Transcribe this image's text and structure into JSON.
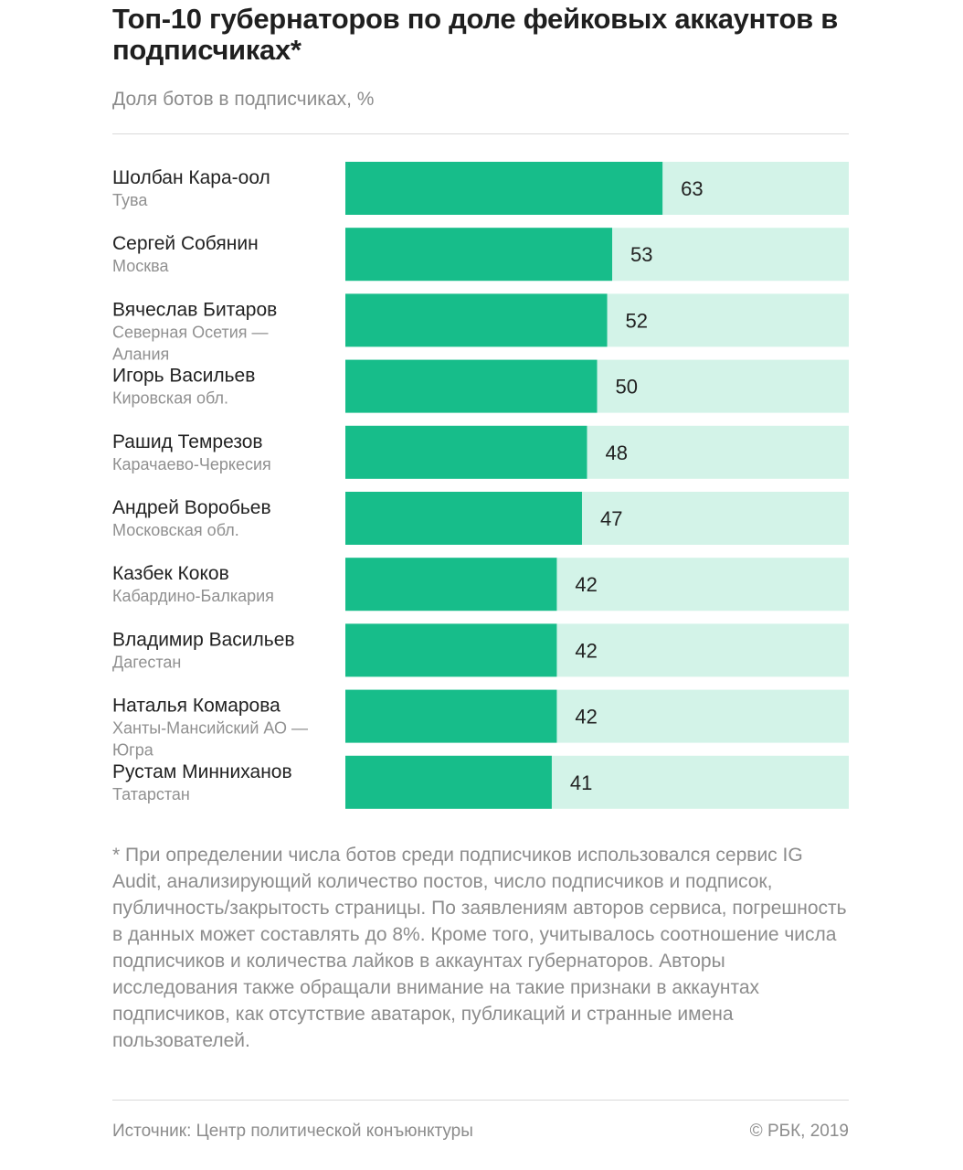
{
  "title": "Топ-10 губернаторов по доле фейковых аккаунтов в подписчиках*",
  "subtitle": "Доля ботов в подписчиках, %",
  "colors": {
    "bar": "#17bd8a",
    "track": "#d3f3e8"
  },
  "chart_data": {
    "type": "bar",
    "orientation": "horizontal",
    "xlim": [
      0,
      100
    ],
    "categories": [
      {
        "name": "Шолбан Кара-оол",
        "region": [
          "Тува"
        ]
      },
      {
        "name": "Сергей Собянин",
        "region": [
          "Москва"
        ]
      },
      {
        "name": "Вячеслав Битаров",
        "region": [
          "Северная Осетия —",
          "Алания"
        ]
      },
      {
        "name": "Игорь Васильев",
        "region": [
          "Кировская обл."
        ]
      },
      {
        "name": "Рашид Темрезов",
        "region": [
          "Карачаево-Черкесия"
        ]
      },
      {
        "name": "Андрей Воробьев",
        "region": [
          "Московская обл."
        ]
      },
      {
        "name": "Казбек Коков",
        "region": [
          "Кабардино-Балкария"
        ]
      },
      {
        "name": "Владимир Васильев",
        "region": [
          "Дагестан"
        ]
      },
      {
        "name": "Наталья Комарова",
        "region": [
          "Ханты-Мансийский АО —",
          "Югра"
        ]
      },
      {
        "name": "Рустам Минниханов",
        "region": [
          "Татарстан"
        ]
      }
    ],
    "values": [
      63,
      53,
      52,
      50,
      48,
      47,
      42,
      42,
      42,
      41
    ]
  },
  "footnote": "* При определении числа ботов среди подписчиков использовался сервис IG Audit, анализирующий количество постов, число подписчиков и подписок, публичность/закрытость страницы. По заявлениям авторов сервиса, погрешность в данных может составлять до 8%. Кроме того, учитывалось соотношение числа подписчиков и количества лайков в аккаунтах губернаторов. Авторы исследования также обращали внимание на такие признаки в аккаунтах подписчиков, как отсутствие аватарок, публикаций и странные имена пользователей.",
  "source": "Источник: Центр политической конъюнктуры",
  "copyright": "© РБК, 2019"
}
